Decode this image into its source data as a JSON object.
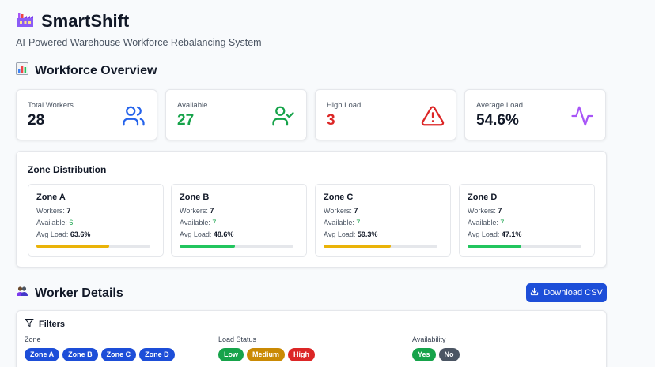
{
  "header": {
    "title": "SmartShift",
    "subtitle": "AI-Powered Warehouse Workforce Rebalancing System"
  },
  "overview": {
    "title": "Workforce Overview",
    "stats": [
      {
        "label": "Total Workers",
        "value": "28",
        "color": "#111827",
        "icon": "users-icon"
      },
      {
        "label": "Available",
        "value": "27",
        "color": "#16a34a",
        "icon": "user-check-icon"
      },
      {
        "label": "High Load",
        "value": "3",
        "color": "#dc2626",
        "icon": "warning-icon"
      },
      {
        "label": "Average Load",
        "value": "54.6%",
        "color": "#111827",
        "icon": "activity-icon"
      }
    ]
  },
  "zones": {
    "title": "Zone Distribution",
    "workers_label": "Workers:",
    "available_label": "Available:",
    "avg_load_label": "Avg Load:",
    "items": [
      {
        "name": "Zone A",
        "workers": "7",
        "available": "6",
        "avg_load": "63.6%",
        "load": 63.6,
        "bar_color": "#eab308"
      },
      {
        "name": "Zone B",
        "workers": "7",
        "available": "7",
        "avg_load": "48.6%",
        "load": 48.6,
        "bar_color": "#22c55e"
      },
      {
        "name": "Zone C",
        "workers": "7",
        "available": "7",
        "avg_load": "59.3%",
        "load": 59.3,
        "bar_color": "#eab308"
      },
      {
        "name": "Zone D",
        "workers": "7",
        "available": "7",
        "avg_load": "47.1%",
        "load": 47.1,
        "bar_color": "#22c55e"
      }
    ]
  },
  "details": {
    "title": "Worker Details",
    "download_label": "Download CSV"
  },
  "filters": {
    "title": "Filters",
    "zone": {
      "label": "Zone",
      "options": [
        "Zone A",
        "Zone B",
        "Zone C",
        "Zone D"
      ]
    },
    "load_status": {
      "label": "Load Status",
      "options": [
        "Low",
        "Medium",
        "High"
      ]
    },
    "availability": {
      "label": "Availability",
      "options": [
        "Yes",
        "No"
      ]
    }
  },
  "colors": {
    "accent": "#1d4ed8",
    "low": "#16a34a",
    "medium": "#ca8a04",
    "high": "#dc2626",
    "no": "#4b5563"
  }
}
